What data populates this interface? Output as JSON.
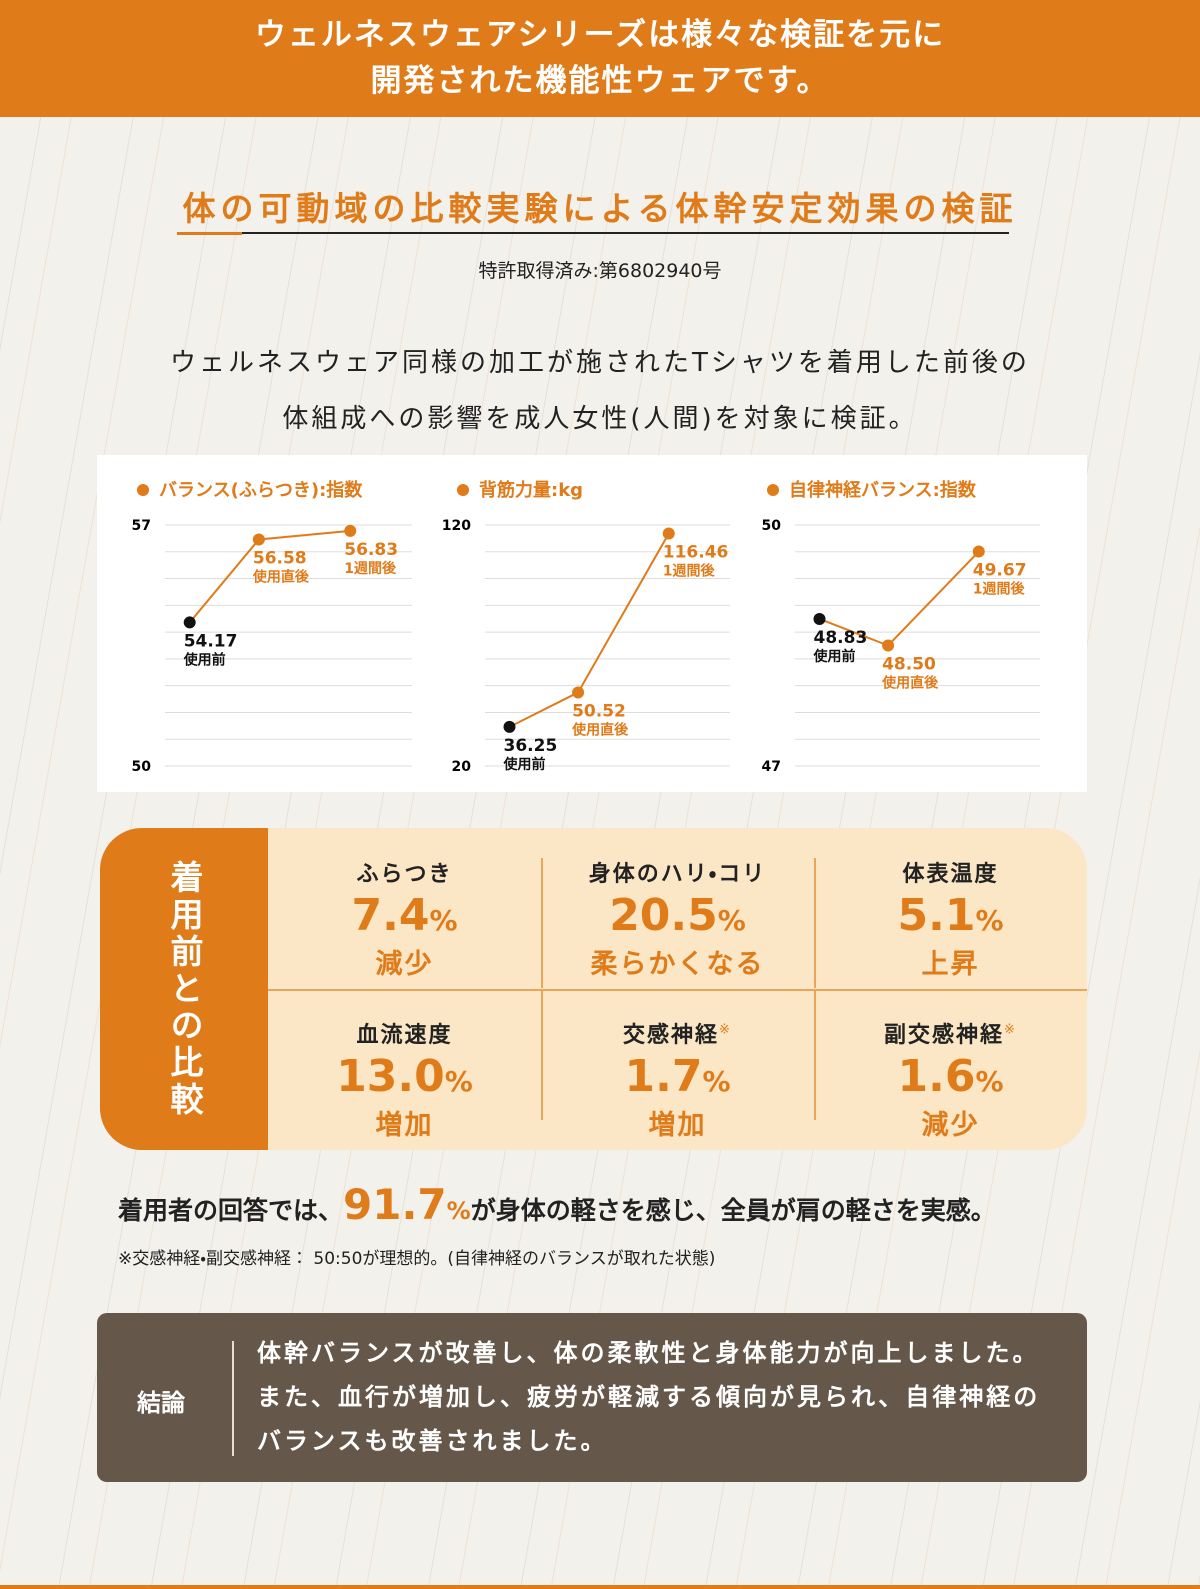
{
  "header": {
    "title_lines": [
      "ウェルネスウェアシリーズは様々な検証を元に",
      "開発された機能性ウェアです。"
    ]
  },
  "section": {
    "title": "体の可動域の比較実験による体幹安定効果の検証",
    "patent": "特許取得済み:第6802940号",
    "description_lines": [
      "ウェルネスウェア同様の加工が施されたTシャツを着用した前後の",
      "体組成への影響を成人女性(人間)を対象に検証。"
    ]
  },
  "chart_data": [
    {
      "type": "line",
      "title": "バランス(ふらつき):指数",
      "categories": [
        "使用前",
        "使用直後",
        "1週間後"
      ],
      "values": [
        54.17,
        56.58,
        56.83
      ],
      "ylim": [
        50,
        57
      ],
      "yticks": [
        50,
        57
      ],
      "grid": true,
      "color": "#e07b1a",
      "marker_colors": [
        "#111111",
        "#e07b1a",
        "#e07b1a"
      ]
    },
    {
      "type": "line",
      "title": "背筋力量:kg",
      "categories": [
        "使用前",
        "使用直後",
        "1週間後"
      ],
      "values": [
        36.25,
        50.52,
        116.46
      ],
      "ylim": [
        20,
        120
      ],
      "yticks": [
        20,
        120
      ],
      "grid": true,
      "color": "#e07b1a",
      "marker_colors": [
        "#111111",
        "#e07b1a",
        "#e07b1a"
      ]
    },
    {
      "type": "line",
      "title": "自律神経バランス:指数",
      "categories": [
        "使用前",
        "使用直後",
        "1週間後"
      ],
      "values": [
        48.83,
        48.5,
        49.67
      ],
      "value_labels": [
        "48.83",
        "48.50",
        "49.67"
      ],
      "ylim": [
        47,
        50
      ],
      "yticks": [
        47,
        50
      ],
      "grid": true,
      "color": "#e07b1a",
      "marker_colors": [
        "#111111",
        "#e07b1a",
        "#e07b1a"
      ]
    }
  ],
  "comparison": {
    "side_label": "着用前との比較",
    "items": [
      {
        "name": "ふらつき",
        "value": "7.4",
        "unit": "%",
        "effect": "減少"
      },
      {
        "name": "身体のハリ・コリ",
        "value": "20.5",
        "unit": "%",
        "effect": "柔らかくなる"
      },
      {
        "name": "体表温度",
        "value": "5.1",
        "unit": "%",
        "effect": "上昇"
      },
      {
        "name": "血流速度",
        "value": "13.0",
        "unit": "%",
        "effect": "増加"
      },
      {
        "name": "交感神経",
        "note_mark": "※",
        "value": "1.7",
        "unit": "%",
        "effect": "増加"
      },
      {
        "name": "副交感神経",
        "note_mark": "※",
        "value": "1.6",
        "unit": "%",
        "effect": "減少"
      }
    ]
  },
  "summary": {
    "lead": "着用者の回答では、",
    "highlight": "91.7",
    "unit": "%",
    "tail": "が身体の軽さを感じ、全員が肩の軽さを実感。",
    "note": "※交感神経・副交感神経： 50:50が理想的。(自律神経のバランスが取れた状態)"
  },
  "conclusion": {
    "label": "結論",
    "lines": [
      "体幹バランスが改善し、体の柔軟性と身体能力が向上しました。",
      "また、血行が増加し、疲労が軽減する傾向が見られ、自律神経の",
      "バランスも改善されました。"
    ]
  }
}
